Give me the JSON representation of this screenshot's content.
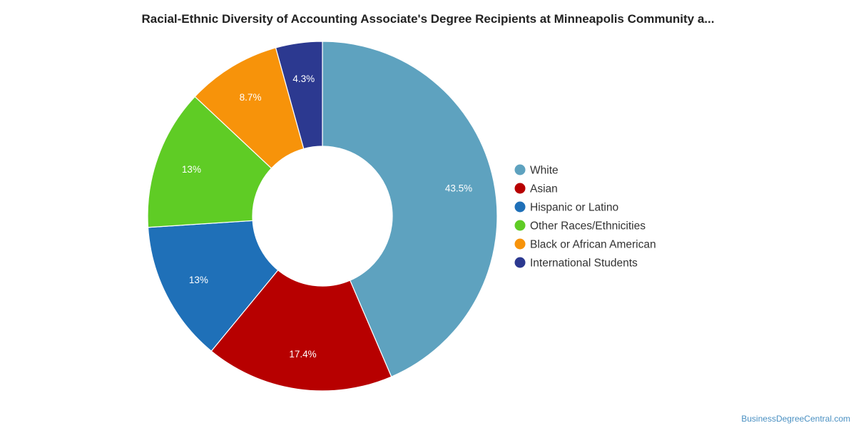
{
  "title": "Racial-Ethnic Diversity of Accounting Associate's Degree Recipients at Minneapolis Community a...",
  "credit": "BusinessDegreeCentral.com",
  "chart_data": {
    "type": "pie",
    "donut": true,
    "legend_position": "right",
    "slices": [
      {
        "name": "White",
        "value": 43.5,
        "label": "43.5%",
        "color": "#5ea2bf"
      },
      {
        "name": "Asian",
        "value": 17.4,
        "label": "17.4%",
        "color": "#b70000"
      },
      {
        "name": "Hispanic or Latino",
        "value": 13.0,
        "label": "13%",
        "color": "#1f70b8"
      },
      {
        "name": "Other Races/Ethnicities",
        "value": 13.0,
        "label": "13%",
        "color": "#5fcc25"
      },
      {
        "name": "Black or African American",
        "value": 8.7,
        "label": "8.7%",
        "color": "#f7930a"
      },
      {
        "name": "International Students",
        "value": 4.3,
        "label": "4.3%",
        "color": "#2c3990"
      }
    ]
  }
}
